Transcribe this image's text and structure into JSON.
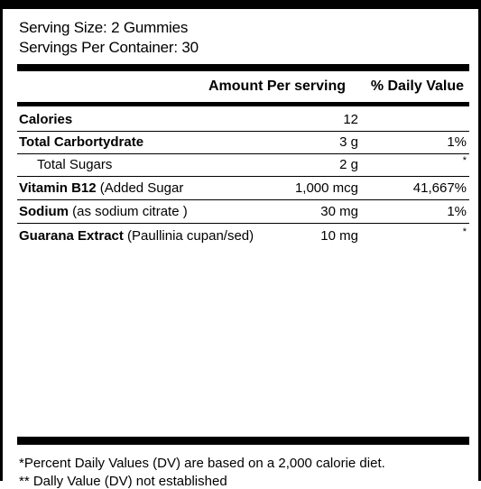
{
  "serving": {
    "size": "Serving Size: 2 Gummies",
    "per_container": "Servings Per Container: 30"
  },
  "header": {
    "amount": "Amount Per serving",
    "daily_value": "% Daily Value"
  },
  "rows": [
    {
      "name_bold": "Calories",
      "name_rest": "",
      "amount": "12",
      "dv": ""
    },
    {
      "name_bold": "Total Carbortydrate",
      "name_rest": "",
      "amount": "3 g",
      "dv": "1%"
    },
    {
      "name_bold": "",
      "name_rest": "Total Sugars",
      "amount": "2 g",
      "dv": "*"
    },
    {
      "name_bold": "Vitamin B12",
      "name_rest": " (Added Sugar",
      "amount": "1,000 mcg",
      "dv": "41,667%"
    },
    {
      "name_bold": "Sodium",
      "name_rest": " (as  sodium citrate )",
      "amount": "30 mg",
      "dv": "1%"
    },
    {
      "name_bold": "Guarana Extract",
      "name_rest": " (Paullinia cupan/sed)",
      "amount": "10 mg",
      "dv": "*"
    }
  ],
  "footnotes": {
    "line1": "*Percent Daily Values (DV) are based on a 2,000 calorie diet.",
    "line2": "** Dally Value (DV) not established"
  }
}
